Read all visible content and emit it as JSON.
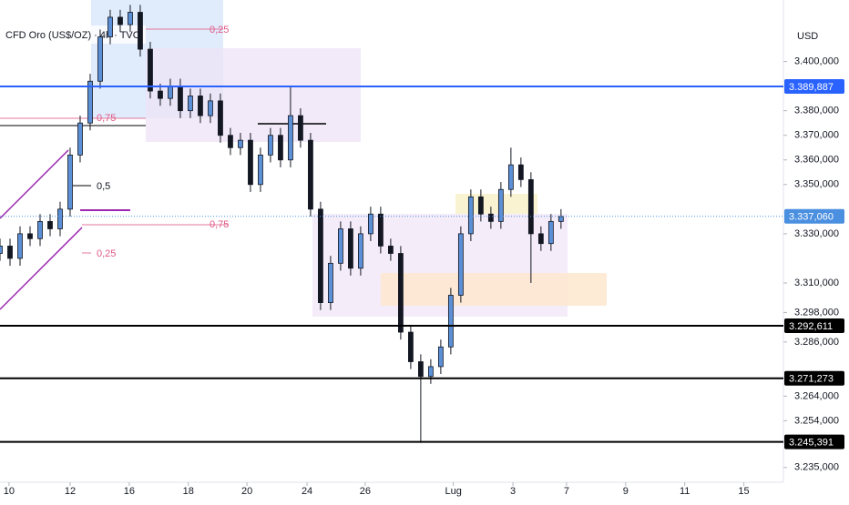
{
  "chart_data": {
    "type": "candlestick",
    "title": "CFD Oro (US$/OZ) · 4h · TVC",
    "y_axis_label": "USD",
    "up_color": "#5b8fd6",
    "down_color": "#131722",
    "grid": false,
    "xlim": [
      0,
      156.4
    ],
    "xticks": [
      {
        "value": 1.8,
        "label": "10"
      },
      {
        "value": 14,
        "label": "12"
      },
      {
        "value": 25.8,
        "label": "16"
      },
      {
        "value": 37.6,
        "label": "18"
      },
      {
        "value": 49.3,
        "label": "20"
      },
      {
        "value": 61.3,
        "label": "24"
      },
      {
        "value": 72.9,
        "label": "26"
      },
      {
        "value": 90.5,
        "label": "Lug"
      },
      {
        "value": 102.4,
        "label": "3"
      },
      {
        "value": 113.1,
        "label": "7"
      },
      {
        "value": 124.9,
        "label": "9"
      },
      {
        "value": 136.7,
        "label": "11"
      },
      {
        "value": 148.5,
        "label": "15"
      }
    ],
    "ylim": [
      3229,
      3425
    ],
    "yticks": [
      {
        "value": 3400,
        "label": "3.400,000"
      },
      {
        "value": 3380,
        "label": "3.380,000"
      },
      {
        "value": 3370,
        "label": "3.370,000"
      },
      {
        "value": 3360,
        "label": "3.360,000"
      },
      {
        "value": 3350,
        "label": "3.350,000"
      },
      {
        "value": 3330,
        "label": "3.330,000"
      },
      {
        "value": 3310,
        "label": "3.310,000"
      },
      {
        "value": 3298,
        "label": "3.298,000"
      },
      {
        "value": 3286,
        "label": "3.286,000"
      },
      {
        "value": 3264,
        "label": "3.264,000"
      },
      {
        "value": 3254,
        "label": "3.254,000"
      },
      {
        "value": 3235,
        "label": "3.235,000"
      }
    ],
    "price_lines": [
      {
        "value": 3389.887,
        "label": "3.389,887",
        "color": "#2962ff",
        "style": "solid"
      },
      {
        "value": 3337.06,
        "label": "3.337,060",
        "color": "#4a8fe0",
        "style": "dotted"
      },
      {
        "value": 3292.611,
        "label": "3.292,611",
        "color": "#000000",
        "style": "solid"
      },
      {
        "value": 3271.273,
        "label": "3.271,273",
        "color": "#000000",
        "style": "solid"
      },
      {
        "value": 3245.391,
        "label": "3.245,391",
        "color": "#000000",
        "style": "solid"
      }
    ],
    "annotations": [
      "0,25",
      "0,75",
      "0,5",
      "0,75",
      "0,25"
    ],
    "x": [
      0,
      2,
      4,
      6,
      8,
      10,
      12,
      14,
      16,
      18,
      20,
      22,
      24,
      26,
      28,
      30,
      32,
      34,
      36,
      38,
      40,
      42,
      44,
      46,
      48,
      50,
      52,
      54,
      56,
      58,
      60,
      62,
      64,
      66,
      68,
      70,
      72,
      74,
      76,
      78,
      80,
      82,
      84,
      86,
      88,
      90,
      92,
      94,
      96,
      98,
      100,
      102,
      104,
      106,
      108,
      110,
      112
    ],
    "open": [
      3322,
      3325,
      3320,
      3330,
      3328,
      3335,
      3332,
      3340,
      3362,
      3375,
      3392,
      3410,
      3418,
      3415,
      3420,
      3405,
      3388,
      3385,
      3390,
      3380,
      3386,
      3378,
      3384,
      3370,
      3365,
      3368,
      3350,
      3362,
      3370,
      3360,
      3378,
      3368,
      3340,
      3302,
      3318,
      3332,
      3316,
      3330,
      3338,
      3325,
      3322,
      3290,
      3278,
      3272,
      3276,
      3284,
      3305,
      3330,
      3345,
      3338,
      3335,
      3348,
      3358,
      3352,
      3330,
      3326,
      3335
    ],
    "high": [
      3328,
      3328,
      3333,
      3333,
      3338,
      3338,
      3343,
      3365,
      3378,
      3395,
      3413,
      3421,
      3421,
      3423,
      3423,
      3408,
      3391,
      3393,
      3393,
      3389,
      3389,
      3387,
      3387,
      3373,
      3371,
      3371,
      3365,
      3373,
      3373,
      3390,
      3381,
      3371,
      3343,
      3321,
      3335,
      3335,
      3333,
      3341,
      3341,
      3328,
      3325,
      3293,
      3281,
      3279,
      3287,
      3308,
      3333,
      3348,
      3348,
      3341,
      3351,
      3365,
      3361,
      3355,
      3333,
      3338,
      3340
    ],
    "low": [
      3319,
      3317,
      3317,
      3325,
      3325,
      3329,
      3329,
      3337,
      3359,
      3372,
      3389,
      3407,
      3412,
      3412,
      3402,
      3385,
      3382,
      3382,
      3377,
      3377,
      3375,
      3375,
      3367,
      3362,
      3362,
      3347,
      3347,
      3359,
      3357,
      3357,
      3365,
      3337,
      3299,
      3299,
      3315,
      3313,
      3313,
      3327,
      3322,
      3319,
      3287,
      3275,
      3245,
      3269,
      3273,
      3281,
      3302,
      3327,
      3335,
      3332,
      3332,
      3345,
      3349,
      3310,
      3323,
      3323,
      3332
    ],
    "close": [
      3325,
      3320,
      3330,
      3328,
      3335,
      3332,
      3340,
      3362,
      3375,
      3392,
      3410,
      3418,
      3415,
      3420,
      3405,
      3388,
      3385,
      3390,
      3380,
      3386,
      3378,
      3384,
      3370,
      3365,
      3368,
      3350,
      3362,
      3370,
      3360,
      3378,
      3368,
      3340,
      3302,
      3318,
      3332,
      3316,
      3330,
      3338,
      3325,
      3322,
      3290,
      3278,
      3272,
      3276,
      3284,
      3305,
      3330,
      3345,
      3338,
      3335,
      3348,
      3358,
      3352,
      3330,
      3326,
      3335,
      3337
    ]
  }
}
